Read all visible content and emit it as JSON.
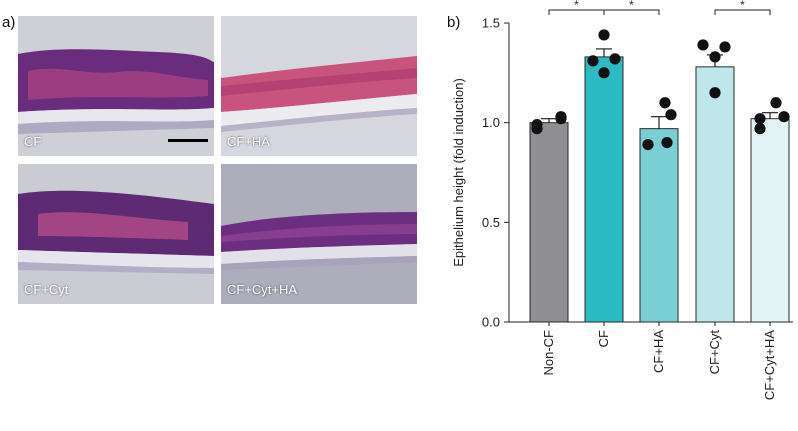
{
  "panel_a": {
    "letter": "a)",
    "images": [
      {
        "label": "CF",
        "bg": "#c9c9d4",
        "tissue": "#6a2c7d",
        "stain": "#c54a8c"
      },
      {
        "label": "CF+HA",
        "bg": "#d4d4dc",
        "tissue": "#c8547e",
        "stain": "#b23a6c"
      },
      {
        "label": "CF+Cyt",
        "bg": "#c8c8d0",
        "tissue": "#5e2a74",
        "stain": "#c7548f"
      },
      {
        "label": "CF+Cyt+HA",
        "bg": "#a9a9b8",
        "tissue": "#6c2e80",
        "stain": "#9a4a9a"
      }
    ]
  },
  "panel_b": {
    "letter": "b)"
  },
  "chart_data": {
    "type": "bar",
    "ylabel": "Epithelium height (fold induction)",
    "ylim": [
      0,
      1.5
    ],
    "yticks": [
      "0.0",
      "0.5",
      "1.0",
      "1.5"
    ],
    "categories": [
      "Non-CF",
      "CF",
      "CF+HA",
      "CF+Cyt",
      "CF+Cyt+HA"
    ],
    "values": [
      1.0,
      1.33,
      0.97,
      1.28,
      1.02
    ],
    "errors": [
      0.02,
      0.04,
      0.06,
      0.06,
      0.03
    ],
    "colors": [
      "#8e8e93",
      "#2bbcc3",
      "#79cfd4",
      "#bfe6ea",
      "#e4f4f6"
    ],
    "points": [
      [
        0.99,
        1.03,
        0.97,
        1.02
      ],
      [
        1.44,
        1.32,
        1.25,
        1.31
      ],
      [
        1.1,
        1.04,
        0.89,
        0.9
      ],
      [
        1.39,
        1.38,
        1.33,
        1.15
      ],
      [
        1.1,
        1.02,
        0.97,
        1.03
      ]
    ],
    "significance": [
      {
        "from": 0,
        "to": 1,
        "label": "*"
      },
      {
        "from": 1,
        "to": 2,
        "label": "*"
      },
      {
        "from": 3,
        "to": 4,
        "label": "*"
      }
    ]
  }
}
